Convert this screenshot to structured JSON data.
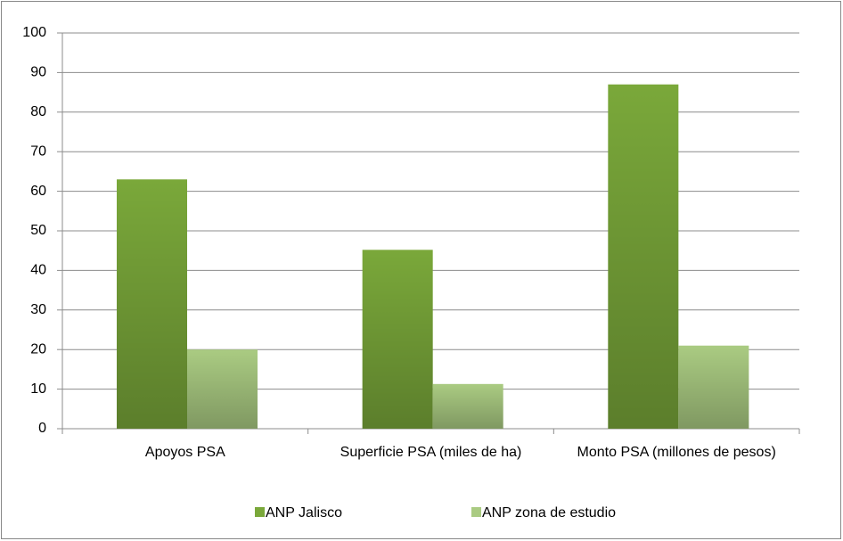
{
  "chart_data": {
    "type": "bar",
    "categories": [
      "Apoyos PSA",
      "Superficie PSA (miles de ha)",
      "Monto PSA (millones de pesos)"
    ],
    "series": [
      {
        "name": "ANP Jalisco",
        "color": "#7aa83a",
        "values": [
          63,
          45.2,
          87
        ]
      },
      {
        "name": "ANP zona de estudio",
        "color": "#aacb82",
        "values": [
          20,
          11.3,
          21
        ]
      }
    ],
    "ylim": [
      0,
      100
    ],
    "yticks": [
      0,
      10,
      20,
      30,
      40,
      50,
      60,
      70,
      80,
      90,
      100
    ],
    "grid": true,
    "legend": "bottom"
  }
}
